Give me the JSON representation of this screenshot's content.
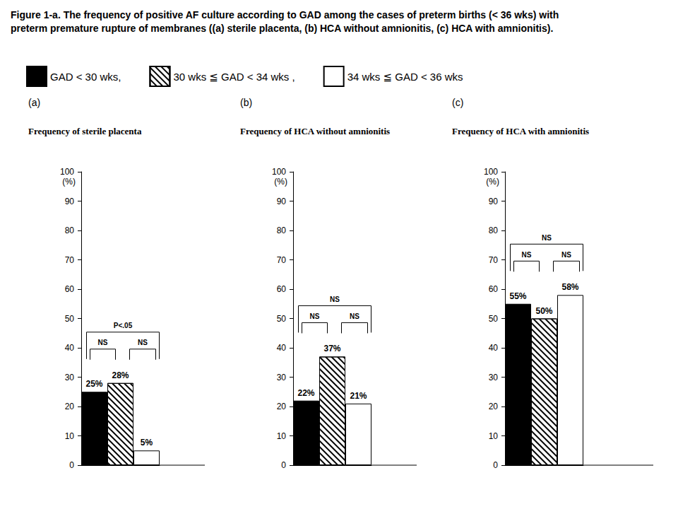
{
  "title": "Figure 1-a. The frequency of positive AF culture according to GAD among the cases of preterm births (< 36 wks) with\npreterm premature rupture of membranes ((a) sterile placenta, (b) HCA without amnionitis, (c) HCA with amnionitis).",
  "chart_data": [
    {
      "type": "bar",
      "title": "(a)",
      "subtitle": "Frequency of sterile placenta",
      "ylabel": "(%)",
      "categories": [
        null
      ],
      "series": [
        {
          "name": "GAD < 30 wks,",
          "color": "#000000",
          "marker": "solid",
          "values": [
            25
          ],
          "value_labels": [
            "25%"
          ]
        },
        {
          "name": "30 wks ≦ GAD < 34 wks ,",
          "color": "#ffffff",
          "marker": "hatch",
          "values": [
            28
          ],
          "value_labels": [
            "28%"
          ]
        },
        {
          "name": "34 wks ≦ GAD < 36 wks",
          "color": "#ffffff",
          "marker": "solid",
          "values": [
            5
          ],
          "value_labels": [
            "5%"
          ]
        }
      ],
      "ylim": [
        0,
        100
      ],
      "yticks": [
        0,
        10,
        20,
        30,
        40,
        50,
        60,
        70,
        80,
        90,
        100
      ],
      "grid": false,
      "data_labels": true,
      "tick_labels": "y",
      "legend": "top-left",
      "annotations": [
        {
          "text": "NS",
          "between": [
            0,
            1
          ]
        },
        {
          "text": "NS",
          "between": [
            1,
            2
          ]
        },
        {
          "text": "P<.05",
          "between": [
            0,
            2
          ]
        }
      ]
    },
    {
      "type": "bar",
      "title": "(b)",
      "subtitle": "Frequency of HCA without amnionitis",
      "ylabel": "(%)",
      "categories": [
        null
      ],
      "series": [
        {
          "name": "GAD < 30 wks,",
          "color": "#000000",
          "marker": "solid",
          "values": [
            22
          ],
          "value_labels": [
            "22%"
          ]
        },
        {
          "name": "30 wks ≦ GAD < 34 wks ,",
          "color": "#ffffff",
          "marker": "hatch",
          "values": [
            37
          ],
          "value_labels": [
            "37%"
          ]
        },
        {
          "name": "34 wks ≦ GAD < 36 wks",
          "color": "#ffffff",
          "marker": "solid",
          "values": [
            21
          ],
          "value_labels": [
            "21%"
          ]
        }
      ],
      "ylim": [
        0,
        100
      ],
      "yticks": [
        0,
        10,
        20,
        30,
        40,
        50,
        60,
        70,
        80,
        90,
        100
      ],
      "grid": false,
      "data_labels": true,
      "tick_labels": "y",
      "annotations": [
        {
          "text": "NS",
          "between": [
            0,
            1
          ]
        },
        {
          "text": "NS",
          "between": [
            1,
            2
          ]
        },
        {
          "text": "NS",
          "between": [
            0,
            2
          ]
        }
      ]
    },
    {
      "type": "bar",
      "title": "(c)",
      "subtitle": "Frequency of HCA with amnionitis",
      "ylabel": "(%)",
      "categories": [
        null
      ],
      "series": [
        {
          "name": "GAD < 30 wks,",
          "color": "#000000",
          "marker": "solid",
          "values": [
            55
          ],
          "value_labels": [
            "55%"
          ]
        },
        {
          "name": "30 wks ≦ GAD < 34 wks ,",
          "color": "#ffffff",
          "marker": "hatch",
          "values": [
            50
          ],
          "value_labels": [
            "50%"
          ]
        },
        {
          "name": "34 wks ≦ GAD < 36 wks",
          "color": "#ffffff",
          "marker": "solid",
          "values": [
            58
          ],
          "value_labels": [
            "58%"
          ]
        }
      ],
      "ylim": [
        0,
        100
      ],
      "yticks": [
        0,
        10,
        20,
        30,
        40,
        50,
        60,
        70,
        80,
        90,
        100
      ],
      "grid": false,
      "data_labels": true,
      "tick_labels": "y",
      "annotations": [
        {
          "text": "NS",
          "between": [
            0,
            1
          ]
        },
        {
          "text": "NS",
          "between": [
            1,
            2
          ]
        },
        {
          "text": "NS",
          "between": [
            0,
            2
          ]
        }
      ]
    }
  ]
}
